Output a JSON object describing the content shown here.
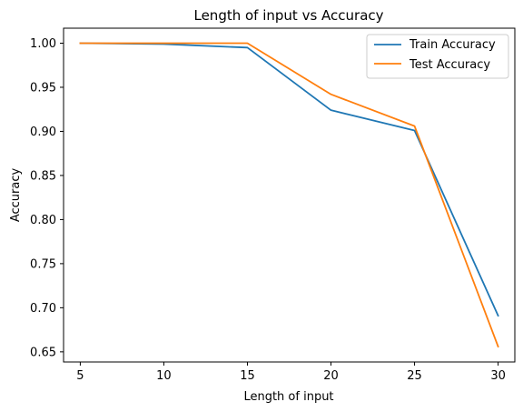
{
  "chart_data": {
    "type": "line",
    "title": "Length of input vs Accuracy",
    "xlabel": "Length of input",
    "ylabel": "Accuracy",
    "x": [
      5,
      10,
      15,
      20,
      25,
      30
    ],
    "xticks": [
      5,
      10,
      15,
      20,
      25,
      30
    ],
    "yticks": [
      0.65,
      0.7,
      0.75,
      0.8,
      0.85,
      0.9,
      0.95,
      1.0
    ],
    "xlim": [
      4,
      31
    ],
    "ylim": [
      0.6385,
      1.017
    ],
    "grid": false,
    "legend_position": "top-right",
    "series": [
      {
        "name": "Train Accuracy",
        "color": "#1f77b4",
        "values": [
          1.0,
          0.999,
          0.995,
          0.924,
          0.901,
          0.691
        ]
      },
      {
        "name": "Test Accuracy",
        "color": "#ff7f0e",
        "values": [
          1.0,
          1.0,
          1.0,
          0.942,
          0.906,
          0.656
        ]
      }
    ]
  }
}
